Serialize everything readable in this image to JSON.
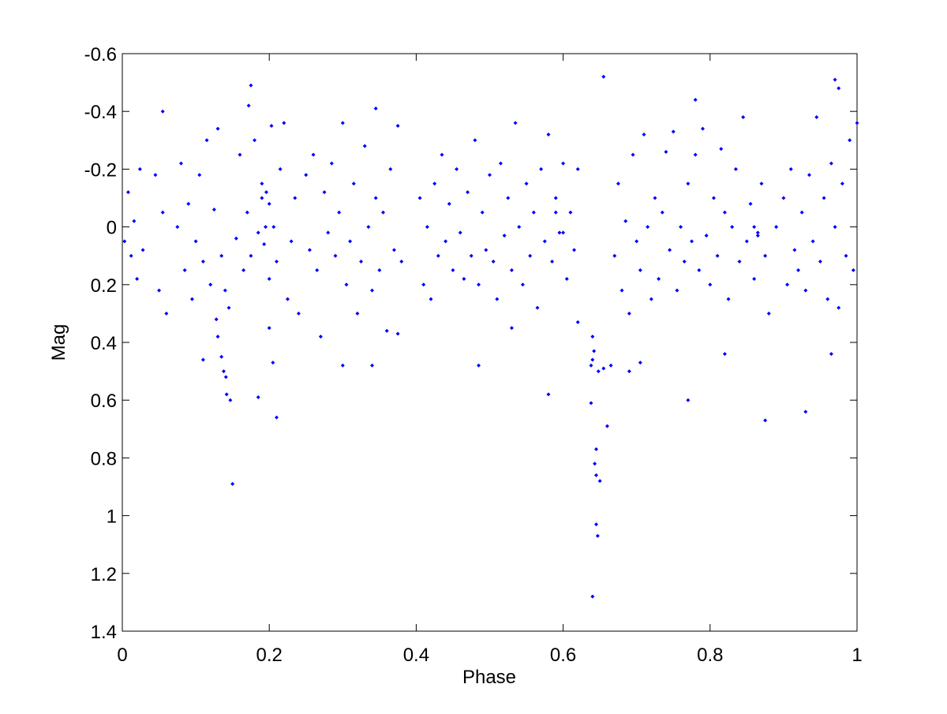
{
  "chart_data": {
    "type": "scatter",
    "xlabel": "Phase",
    "ylabel": "Mag",
    "xlim": [
      0,
      1
    ],
    "ylim": [
      -0.6,
      1.4
    ],
    "y_reversed": true,
    "xticks": [
      0,
      0.2,
      0.4,
      0.6,
      0.8,
      1
    ],
    "yticks": [
      -0.6,
      -0.4,
      -0.2,
      0,
      0.2,
      0.4,
      0.6,
      0.8,
      1,
      1.2,
      1.4
    ],
    "grid": false,
    "series": [
      {
        "color": "#0000ff",
        "x": [
          0.003,
          0.008,
          0.012,
          0.016,
          0.02,
          0.024,
          0.028,
          0.045,
          0.05,
          0.055,
          0.06,
          0.075,
          0.08,
          0.085,
          0.09,
          0.095,
          0.1,
          0.105,
          0.11,
          0.115,
          0.12,
          0.125,
          0.128,
          0.13,
          0.135,
          0.14,
          0.145,
          0.155,
          0.16,
          0.165,
          0.17,
          0.175,
          0.18,
          0.185,
          0.19,
          0.193,
          0.196,
          0.2,
          0.203,
          0.206,
          0.21,
          0.215,
          0.22,
          0.225,
          0.23,
          0.235,
          0.24,
          0.25,
          0.255,
          0.26,
          0.265,
          0.27,
          0.275,
          0.28,
          0.285,
          0.29,
          0.295,
          0.3,
          0.305,
          0.31,
          0.315,
          0.32,
          0.325,
          0.33,
          0.335,
          0.34,
          0.345,
          0.35,
          0.355,
          0.36,
          0.365,
          0.37,
          0.375,
          0.38,
          0.405,
          0.41,
          0.415,
          0.42,
          0.425,
          0.43,
          0.435,
          0.44,
          0.445,
          0.45,
          0.455,
          0.46,
          0.465,
          0.47,
          0.475,
          0.48,
          0.485,
          0.49,
          0.495,
          0.5,
          0.505,
          0.51,
          0.515,
          0.52,
          0.525,
          0.53,
          0.535,
          0.54,
          0.545,
          0.55,
          0.555,
          0.56,
          0.565,
          0.57,
          0.575,
          0.58,
          0.585,
          0.59,
          0.595,
          0.6,
          0.605,
          0.61,
          0.615,
          0.62,
          0.67,
          0.675,
          0.68,
          0.685,
          0.69,
          0.695,
          0.7,
          0.705,
          0.71,
          0.715,
          0.72,
          0.725,
          0.73,
          0.735,
          0.74,
          0.745,
          0.75,
          0.755,
          0.76,
          0.765,
          0.77,
          0.775,
          0.78,
          0.785,
          0.79,
          0.795,
          0.8,
          0.805,
          0.81,
          0.815,
          0.82,
          0.825,
          0.83,
          0.835,
          0.84,
          0.845,
          0.85,
          0.855,
          0.86,
          0.865,
          0.87,
          0.875,
          0.88,
          0.89,
          0.9,
          0.905,
          0.91,
          0.915,
          0.92,
          0.925,
          0.93,
          0.935,
          0.94,
          0.945,
          0.95,
          0.955,
          0.96,
          0.965,
          0.97,
          0.975,
          0.98,
          0.985,
          0.99,
          0.995,
          1.0,
          0.19,
          0.2,
          0.195,
          0.6,
          0.59,
          0.86,
          0.865,
          0.175,
          0.172,
          0.055,
          0.345,
          0.655,
          0.97,
          0.975,
          0.78,
          0.15,
          0.64,
          0.645,
          0.647,
          0.645,
          0.65,
          0.643,
          0.645,
          0.66,
          0.21,
          0.185,
          0.142,
          0.147,
          0.58,
          0.77,
          0.875,
          0.93,
          0.638,
          0.638,
          0.64,
          0.648,
          0.655,
          0.665,
          0.64,
          0.642,
          0.135,
          0.138,
          0.141,
          0.11,
          0.205,
          0.485,
          0.3,
          0.34,
          0.965,
          0.82,
          0.69,
          0.705,
          0.53,
          0.2,
          0.62,
          0.375,
          0.13
        ],
        "values": [
          0.05,
          -0.12,
          0.1,
          -0.02,
          0.18,
          -0.2,
          0.08,
          -0.18,
          0.22,
          -0.05,
          0.3,
          0.0,
          -0.22,
          0.15,
          -0.08,
          0.25,
          0.05,
          -0.18,
          0.12,
          -0.3,
          0.2,
          -0.06,
          0.32,
          -0.34,
          0.1,
          0.22,
          0.28,
          0.04,
          -0.25,
          0.15,
          -0.05,
          0.1,
          -0.3,
          0.02,
          -0.15,
          0.06,
          -0.12,
          0.18,
          -0.35,
          0.0,
          0.12,
          -0.2,
          -0.36,
          0.25,
          0.05,
          -0.1,
          0.3,
          -0.18,
          0.08,
          -0.25,
          0.15,
          0.38,
          -0.12,
          0.02,
          -0.22,
          0.1,
          -0.05,
          -0.36,
          0.2,
          0.05,
          -0.15,
          0.3,
          0.12,
          -0.28,
          0.0,
          0.22,
          -0.1,
          0.15,
          -0.05,
          0.36,
          -0.2,
          0.08,
          -0.35,
          0.12,
          -0.1,
          0.2,
          0.0,
          0.25,
          -0.15,
          0.1,
          -0.25,
          0.05,
          -0.08,
          0.15,
          -0.2,
          0.02,
          0.18,
          -0.12,
          0.1,
          -0.3,
          0.2,
          -0.05,
          0.08,
          -0.18,
          0.12,
          0.25,
          -0.22,
          0.03,
          -0.1,
          0.15,
          -0.36,
          0.0,
          0.2,
          -0.15,
          0.1,
          -0.05,
          0.28,
          -0.2,
          0.05,
          -0.32,
          0.12,
          -0.1,
          0.02,
          -0.22,
          0.18,
          -0.05,
          0.08,
          -0.2,
          0.1,
          -0.15,
          0.22,
          -0.02,
          0.3,
          -0.25,
          0.05,
          0.15,
          -0.32,
          0.0,
          0.25,
          -0.1,
          0.18,
          -0.05,
          -0.26,
          0.08,
          -0.33,
          0.22,
          0.0,
          0.12,
          -0.15,
          0.05,
          -0.25,
          0.15,
          -0.34,
          0.03,
          0.2,
          -0.1,
          0.1,
          -0.27,
          -0.05,
          0.25,
          0.0,
          -0.2,
          0.12,
          -0.38,
          0.05,
          -0.08,
          0.18,
          0.02,
          -0.15,
          0.1,
          0.3,
          0.0,
          -0.1,
          0.2,
          -0.2,
          0.08,
          0.15,
          -0.05,
          0.22,
          -0.18,
          0.05,
          -0.38,
          0.12,
          -0.1,
          0.25,
          -0.22,
          0.0,
          0.28,
          -0.15,
          0.1,
          -0.3,
          0.15,
          -0.36,
          -0.1,
          -0.08,
          0.0,
          0.02,
          -0.05,
          0.0,
          0.03,
          -0.49,
          -0.42,
          -0.4,
          -0.41,
          -0.52,
          -0.51,
          -0.48,
          -0.44,
          0.89,
          1.28,
          1.03,
          1.07,
          0.86,
          0.88,
          0.82,
          0.77,
          0.69,
          0.66,
          0.59,
          0.58,
          0.6,
          0.58,
          0.6,
          0.67,
          0.64,
          0.61,
          0.48,
          0.46,
          0.5,
          0.49,
          0.48,
          0.38,
          0.43,
          0.45,
          0.5,
          0.52,
          0.46,
          0.47,
          0.48,
          0.48,
          0.48,
          0.44,
          0.44,
          0.5,
          0.47,
          0.35,
          0.35,
          0.33,
          0.37,
          0.38
        ]
      }
    ]
  }
}
